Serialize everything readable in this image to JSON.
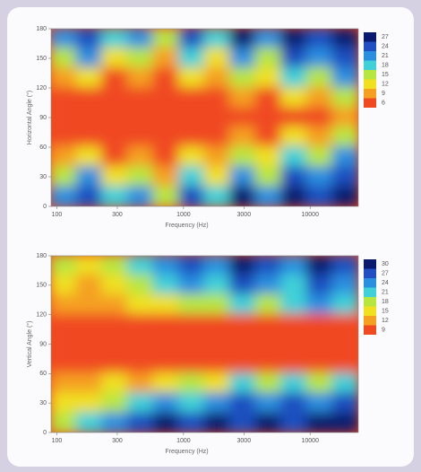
{
  "chart_data": [
    {
      "type": "contour",
      "x_label": "Frequency (Hz)",
      "y_label": "Horizontal Angle (°)",
      "x_log": true,
      "xlim": [
        90,
        24000
      ],
      "xticks": [
        100,
        300,
        1000,
        3000,
        10000
      ],
      "ylim": [
        0,
        180
      ],
      "yticks": [
        0,
        30,
        60,
        90,
        120,
        150,
        180
      ],
      "levels": [
        27,
        24,
        21,
        18,
        15,
        12,
        9,
        6
      ],
      "colors": [
        "#0a1a6e",
        "#1f4fc0",
        "#2b8fe0",
        "#3fd0d8",
        "#b8e640",
        "#f0e020",
        "#f5a020",
        "#f04a20"
      ],
      "z": [
        [
          21,
          24,
          18,
          21,
          15,
          24,
          18,
          27,
          21,
          27,
          24,
          27
        ],
        [
          15,
          21,
          12,
          15,
          9,
          18,
          12,
          21,
          15,
          24,
          21,
          24
        ],
        [
          9,
          12,
          6,
          9,
          6,
          12,
          9,
          15,
          12,
          18,
          15,
          21
        ],
        [
          6,
          6,
          6,
          6,
          6,
          6,
          6,
          9,
          6,
          12,
          9,
          15
        ],
        [
          6,
          6,
          6,
          6,
          6,
          6,
          6,
          6,
          6,
          6,
          6,
          9
        ],
        [
          6,
          6,
          6,
          6,
          6,
          6,
          6,
          9,
          6,
          12,
          9,
          15
        ],
        [
          9,
          12,
          6,
          9,
          6,
          12,
          9,
          15,
          12,
          18,
          15,
          21
        ],
        [
          15,
          21,
          12,
          15,
          9,
          18,
          12,
          21,
          15,
          24,
          21,
          24
        ],
        [
          21,
          24,
          18,
          21,
          15,
          24,
          18,
          27,
          21,
          27,
          24,
          27
        ]
      ]
    },
    {
      "type": "contour",
      "x_label": "Frequency (Hz)",
      "y_label": "Vertical Angle (°)",
      "x_log": true,
      "xlim": [
        90,
        24000
      ],
      "xticks": [
        100,
        300,
        1000,
        3000,
        10000
      ],
      "ylim": [
        0,
        180
      ],
      "yticks": [
        0,
        30,
        60,
        90,
        120,
        150,
        180
      ],
      "levels": [
        30,
        27,
        24,
        21,
        18,
        15,
        12,
        9
      ],
      "colors": [
        "#0a1a6e",
        "#1f4fc0",
        "#2b8fe0",
        "#3fd0d8",
        "#b8e640",
        "#f0e020",
        "#f5a020",
        "#f04a20"
      ],
      "z": [
        [
          18,
          15,
          18,
          21,
          24,
          27,
          24,
          30,
          27,
          24,
          30,
          27
        ],
        [
          15,
          12,
          15,
          18,
          21,
          24,
          21,
          27,
          24,
          21,
          27,
          24
        ],
        [
          12,
          12,
          12,
          15,
          15,
          18,
          18,
          21,
          18,
          21,
          24,
          21
        ],
        [
          9,
          9,
          9,
          9,
          9,
          9,
          9,
          9,
          9,
          9,
          9,
          9
        ],
        [
          9,
          9,
          9,
          9,
          9,
          9,
          9,
          9,
          9,
          9,
          9,
          9
        ],
        [
          9,
          9,
          9,
          9,
          9,
          9,
          9,
          9,
          9,
          9,
          9,
          9
        ],
        [
          12,
          12,
          15,
          12,
          15,
          18,
          15,
          21,
          18,
          21,
          18,
          21
        ],
        [
          15,
          15,
          18,
          21,
          24,
          21,
          24,
          27,
          24,
          27,
          24,
          27
        ],
        [
          18,
          21,
          24,
          27,
          30,
          27,
          30,
          27,
          30,
          27,
          30,
          30
        ]
      ]
    }
  ]
}
